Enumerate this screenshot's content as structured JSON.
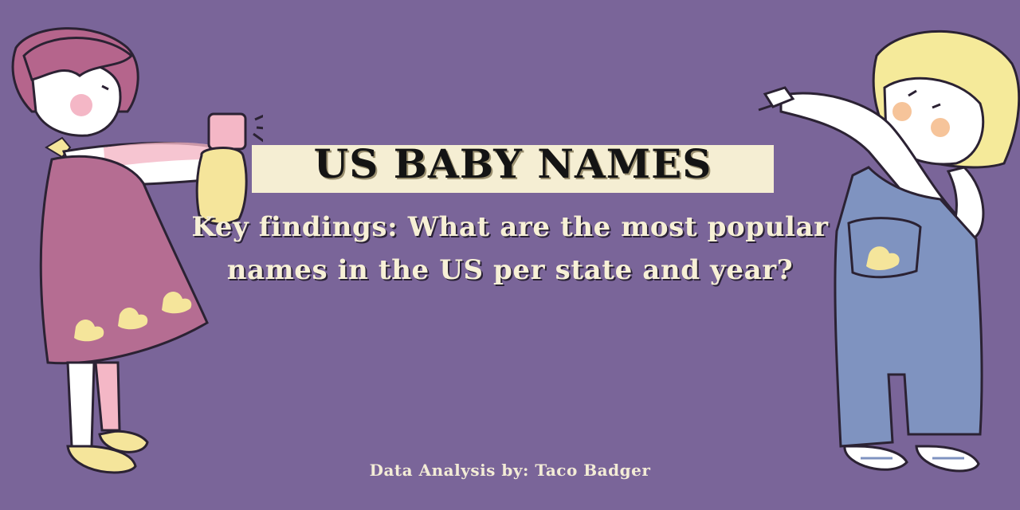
{
  "banner": {
    "title": "US BABY NAMES",
    "subtitle": "Key findings: What are the most popular names in the US per state and year?",
    "credit": "Data Analysis by: Taco Badger"
  },
  "colors": {
    "background": "#7a6599",
    "title_box": "#f5eed3",
    "title_text": "#141414",
    "subtitle_text": "#f7f0d6",
    "girl_dress": "#b56d92",
    "girl_hair": "#b5658c",
    "boy_overalls": "#7f93c0",
    "boy_hair": "#f5ea9a",
    "duck_yellow": "#f5e59b"
  },
  "illustrations": {
    "left": "girl-with-spray-bottle-illustration",
    "right": "boy-in-overalls-illustration"
  }
}
